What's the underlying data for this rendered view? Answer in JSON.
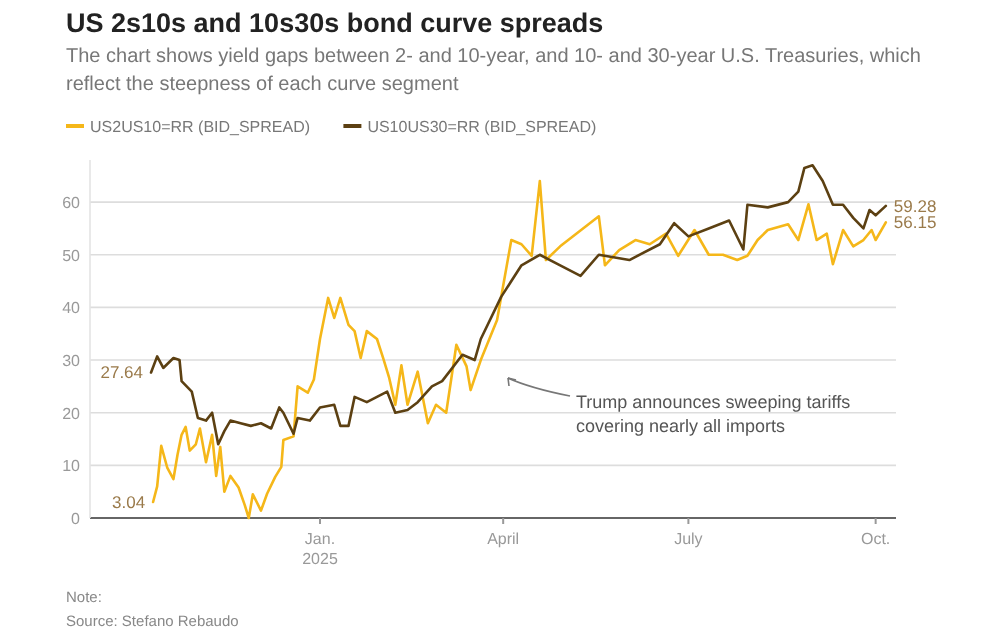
{
  "chart_data": {
    "type": "line",
    "title": "US 2s10s and 10s30s bond curve spreads",
    "subtitle": "The chart shows yield gaps between 2- and 10-year, and 10- and 30-year U.S. Treasuries, which reflect the steepness of each curve segment",
    "series": [
      {
        "name": "US2US10=RR (BID_SPREAD)",
        "color": "#f5b719",
        "x": [
          "2024-10-11",
          "2024-10-13",
          "2024-10-15",
          "2024-10-18",
          "2024-10-21",
          "2024-10-23",
          "2024-10-25",
          "2024-10-27",
          "2024-10-29",
          "2024-11-01",
          "2024-11-03",
          "2024-11-06",
          "2024-11-09",
          "2024-11-11",
          "2024-11-13",
          "2024-11-15",
          "2024-11-18",
          "2024-11-22",
          "2024-11-25",
          "2024-11-27",
          "2024-11-29",
          "2024-12-03",
          "2024-12-06",
          "2024-12-10",
          "2024-12-13",
          "2024-12-14",
          "2024-12-19",
          "2024-12-21",
          "2024-12-26",
          "2024-12-29",
          "2025-01-01",
          "2025-01-05",
          "2025-01-08",
          "2025-01-11",
          "2025-01-15",
          "2025-01-18",
          "2025-01-21",
          "2025-01-24",
          "2025-01-29",
          "2025-02-01",
          "2025-02-04",
          "2025-02-07",
          "2025-02-10",
          "2025-02-13",
          "2025-02-18",
          "2025-02-23",
          "2025-02-27",
          "2025-03-04",
          "2025-03-09",
          "2025-03-14",
          "2025-03-16",
          "2025-03-21",
          "2025-03-29",
          "2025-04-05",
          "2025-04-10",
          "2025-04-15",
          "2025-04-19",
          "2025-04-22",
          "2025-04-29",
          "2025-05-18",
          "2025-05-21",
          "2025-05-28",
          "2025-06-05",
          "2025-06-12",
          "2025-06-20",
          "2025-06-26",
          "2025-07-04",
          "2025-07-11",
          "2025-07-18",
          "2025-07-25",
          "2025-07-30",
          "2025-08-04",
          "2025-08-09",
          "2025-08-19",
          "2025-08-24",
          "2025-08-29",
          "2025-09-02",
          "2025-09-07",
          "2025-09-10",
          "2025-09-15",
          "2025-09-20",
          "2025-09-25",
          "2025-09-29",
          "2025-10-01",
          "2025-10-06"
        ],
        "values": [
          3.04,
          6,
          13.7,
          9.5,
          7.4,
          12,
          15.8,
          17.3,
          12.8,
          14,
          17,
          10.6,
          15.8,
          8,
          13.5,
          5,
          8,
          5.8,
          2.5,
          0,
          4.5,
          1.4,
          4.6,
          7.8,
          9.7,
          14.8,
          15.5,
          25,
          23.8,
          26.3,
          34,
          41.8,
          38,
          41.8,
          36.7,
          35.5,
          30.4,
          35.5,
          34,
          30.4,
          26.6,
          21.5,
          29,
          21.5,
          27.8,
          18,
          21.5,
          20,
          32.9,
          28.8,
          24.3,
          30,
          37.6,
          52.8,
          52,
          49.8,
          64,
          49,
          51.6,
          57.3,
          48,
          50.9,
          52.8,
          52,
          54,
          49.8,
          54.7,
          50,
          50,
          49,
          49.8,
          52.8,
          54.7,
          55.8,
          52.8,
          59.6,
          52.8,
          54,
          48.2,
          54.7,
          51.6,
          52.8,
          54.7,
          52.8,
          56.15
        ],
        "value_labels": [
          "3.04",
          null,
          null,
          null,
          null,
          null,
          null,
          null,
          null,
          null,
          null,
          null,
          null,
          null,
          null,
          null,
          null,
          null,
          null,
          null,
          null,
          null,
          null,
          null,
          null,
          null,
          null,
          null,
          null,
          null,
          null,
          null,
          null,
          null,
          null,
          null,
          null,
          null,
          null,
          null,
          null,
          null,
          null,
          null,
          null,
          null,
          null,
          null,
          null,
          null,
          null,
          null,
          null,
          null,
          null,
          null,
          null,
          null,
          null,
          null,
          null,
          null,
          null,
          null,
          null,
          null,
          null,
          null,
          null,
          null,
          null,
          null,
          null,
          null,
          null,
          null,
          null,
          null,
          null,
          null,
          null,
          null,
          null,
          null,
          "56.15"
        ]
      },
      {
        "name": "US10US30=RR (BID_SPREAD)",
        "color": "#5c4012",
        "x": [
          "2024-10-10",
          "2024-10-13",
          "2024-10-16",
          "2024-10-21",
          "2024-10-24",
          "2024-10-25",
          "2024-10-30",
          "2024-11-02",
          "2024-11-06",
          "2024-11-09",
          "2024-11-12",
          "2024-11-15",
          "2024-11-18",
          "2024-11-23",
          "2024-11-28",
          "2024-12-03",
          "2024-12-08",
          "2024-12-12",
          "2024-12-14",
          "2024-12-19",
          "2024-12-21",
          "2024-12-27",
          "2025-01-01",
          "2025-01-08",
          "2025-01-11",
          "2025-01-15",
          "2025-01-18",
          "2025-01-24",
          "2025-01-29",
          "2025-02-03",
          "2025-02-07",
          "2025-02-13",
          "2025-02-18",
          "2025-02-25",
          "2025-03-02",
          "2025-03-12",
          "2025-03-18",
          "2025-03-21",
          "2025-03-31",
          "2025-04-10",
          "2025-04-19",
          "2025-04-29",
          "2025-05-09",
          "2025-05-18",
          "2025-06-02",
          "2025-06-17",
          "2025-06-24",
          "2025-07-01",
          "2025-07-11",
          "2025-07-21",
          "2025-07-28",
          "2025-07-30",
          "2025-08-09",
          "2025-08-19",
          "2025-08-24",
          "2025-08-27",
          "2025-08-31",
          "2025-09-05",
          "2025-09-10",
          "2025-09-15",
          "2025-09-20",
          "2025-09-25",
          "2025-09-28",
          "2025-10-01",
          "2025-10-06"
        ],
        "values": [
          27.64,
          30.7,
          28.5,
          30.4,
          30,
          26,
          24,
          19,
          18.5,
          20,
          14,
          16.5,
          18.5,
          18,
          17.5,
          18,
          17,
          21,
          20,
          16,
          19,
          18.5,
          21,
          21.5,
          17.5,
          17.5,
          23,
          22,
          23,
          24,
          20,
          20.5,
          22,
          25,
          26,
          31,
          30,
          34,
          42,
          48,
          50,
          48,
          46,
          50,
          49,
          52,
          56,
          53.5,
          55,
          56.5,
          51,
          59.5,
          59,
          60,
          62,
          66.5,
          67,
          64,
          59.5,
          59.5,
          57,
          55,
          58.5,
          57.5,
          59.28
        ],
        "value_labels": [
          "27.64",
          null,
          null,
          null,
          null,
          null,
          null,
          null,
          null,
          null,
          null,
          null,
          null,
          null,
          null,
          null,
          null,
          null,
          null,
          null,
          null,
          null,
          null,
          null,
          null,
          null,
          null,
          null,
          null,
          null,
          null,
          null,
          null,
          null,
          null,
          null,
          null,
          null,
          null,
          null,
          null,
          null,
          null,
          null,
          null,
          null,
          null,
          null,
          null,
          null,
          null,
          null,
          null,
          null,
          null,
          null,
          null,
          null,
          null,
          null,
          null,
          null,
          null,
          null,
          "59.28"
        ]
      }
    ],
    "xlim": [
      "2024-09-10",
      "2025-10-11"
    ],
    "xticks": [
      {
        "value": "2025-01-01",
        "label": "Jan.\n2025"
      },
      {
        "value": "2025-04-01",
        "label": "April"
      },
      {
        "value": "2025-07-01",
        "label": "July"
      },
      {
        "value": "2025-10-01",
        "label": "Oct."
      }
    ],
    "ylim": [
      0,
      68
    ],
    "yticks": [
      0,
      10,
      20,
      30,
      40,
      50,
      60
    ],
    "grid": "y",
    "legend": "top left",
    "line_style": "solid",
    "marker": "none",
    "annotations": [
      "Trump announces sweeping tariffs covering nearly all imports",
      "Note:",
      "Source: Stefano Rebaudo"
    ]
  }
}
